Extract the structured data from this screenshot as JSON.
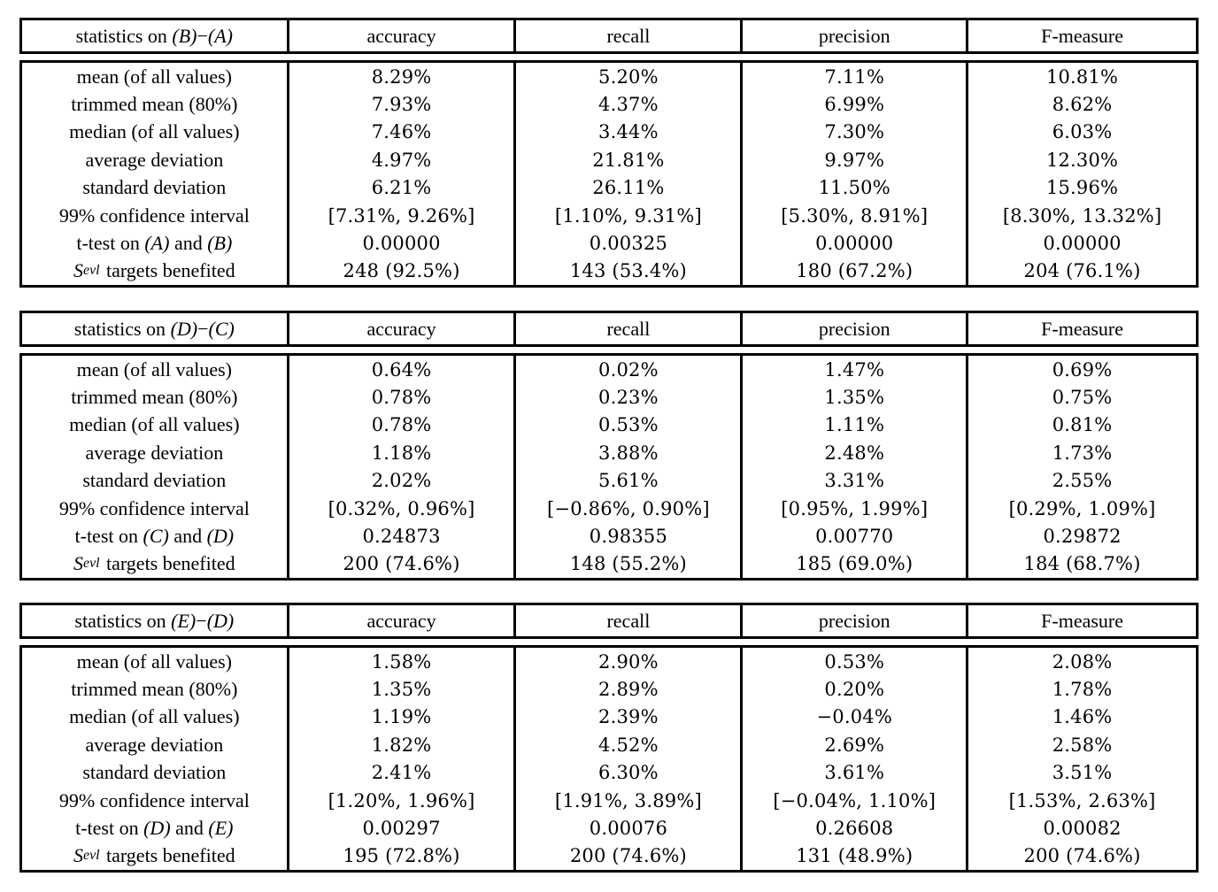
{
  "tables": [
    {
      "title_parts": [
        {
          "t": "statistics on ",
          "s": "r"
        },
        {
          "t": "(B)",
          "s": "i"
        },
        {
          "t": "−",
          "s": "r"
        },
        {
          "t": "(A)",
          "s": "i"
        }
      ],
      "columns": [
        "accuracy",
        "recall",
        "precision",
        "F-measure"
      ],
      "rows": [
        {
          "label_parts": [
            {
              "t": "mean (of all values)",
              "s": "r"
            }
          ],
          "values": [
            "8.29%",
            "5.20%",
            "7.11%",
            "10.81%"
          ]
        },
        {
          "label_parts": [
            {
              "t": "trimmed mean (80%)",
              "s": "r"
            }
          ],
          "values": [
            "7.93%",
            "4.37%",
            "6.99%",
            "8.62%"
          ]
        },
        {
          "label_parts": [
            {
              "t": "median (of all values)",
              "s": "r"
            }
          ],
          "values": [
            "7.46%",
            "3.44%",
            "7.30%",
            "6.03%"
          ]
        },
        {
          "label_parts": [
            {
              "t": "average deviation",
              "s": "r"
            }
          ],
          "values": [
            "4.97%",
            "21.81%",
            "9.97%",
            "12.30%"
          ]
        },
        {
          "label_parts": [
            {
              "t": "standard deviation",
              "s": "r"
            }
          ],
          "values": [
            "6.21%",
            "26.11%",
            "11.50%",
            "15.96%"
          ]
        },
        {
          "label_parts": [
            {
              "t": "99% confidence interval",
              "s": "r"
            }
          ],
          "values": [
            "[7.31%, 9.26%]",
            "[1.10%, 9.31%]",
            "[5.30%, 8.91%]",
            "[8.30%, 13.32%]"
          ]
        },
        {
          "label_parts": [
            {
              "t": "t-test on ",
              "s": "r"
            },
            {
              "t": "(A)",
              "s": "i"
            },
            {
              "t": " and ",
              "s": "r"
            },
            {
              "t": "(B)",
              "s": "i"
            }
          ],
          "values": [
            "0.00000",
            "0.00325",
            "0.00000",
            "0.00000"
          ]
        },
        {
          "label_parts": [
            {
              "t": "S",
              "s": "i"
            },
            {
              "t": "evl",
              "s": "sub"
            },
            {
              "t": " targets benefited",
              "s": "r"
            }
          ],
          "values": [
            "248 (92.5%)",
            "143 (53.4%)",
            "180 (67.2%)",
            "204 (76.1%)"
          ]
        }
      ]
    },
    {
      "title_parts": [
        {
          "t": "statistics on ",
          "s": "r"
        },
        {
          "t": "(D)",
          "s": "i"
        },
        {
          "t": "−",
          "s": "r"
        },
        {
          "t": "(C)",
          "s": "i"
        }
      ],
      "columns": [
        "accuracy",
        "recall",
        "precision",
        "F-measure"
      ],
      "rows": [
        {
          "label_parts": [
            {
              "t": "mean (of all values)",
              "s": "r"
            }
          ],
          "values": [
            "0.64%",
            "0.02%",
            "1.47%",
            "0.69%"
          ]
        },
        {
          "label_parts": [
            {
              "t": "trimmed mean (80%)",
              "s": "r"
            }
          ],
          "values": [
            "0.78%",
            "0.23%",
            "1.35%",
            "0.75%"
          ]
        },
        {
          "label_parts": [
            {
              "t": "median (of all values)",
              "s": "r"
            }
          ],
          "values": [
            "0.78%",
            "0.53%",
            "1.11%",
            "0.81%"
          ]
        },
        {
          "label_parts": [
            {
              "t": "average deviation",
              "s": "r"
            }
          ],
          "values": [
            "1.18%",
            "3.88%",
            "2.48%",
            "1.73%"
          ]
        },
        {
          "label_parts": [
            {
              "t": "standard deviation",
              "s": "r"
            }
          ],
          "values": [
            "2.02%",
            "5.61%",
            "3.31%",
            "2.55%"
          ]
        },
        {
          "label_parts": [
            {
              "t": "99% confidence interval",
              "s": "r"
            }
          ],
          "values": [
            "[0.32%, 0.96%]",
            "[−0.86%, 0.90%]",
            "[0.95%, 1.99%]",
            "[0.29%, 1.09%]"
          ]
        },
        {
          "label_parts": [
            {
              "t": "t-test on ",
              "s": "r"
            },
            {
              "t": "(C)",
              "s": "i"
            },
            {
              "t": " and ",
              "s": "r"
            },
            {
              "t": "(D)",
              "s": "i"
            }
          ],
          "values": [
            "0.24873",
            "0.98355",
            "0.00770",
            "0.29872"
          ]
        },
        {
          "label_parts": [
            {
              "t": "S",
              "s": "i"
            },
            {
              "t": "evl",
              "s": "sub"
            },
            {
              "t": " targets benefited",
              "s": "r"
            }
          ],
          "values": [
            "200 (74.6%)",
            "148 (55.2%)",
            "185 (69.0%)",
            "184 (68.7%)"
          ]
        }
      ]
    },
    {
      "title_parts": [
        {
          "t": "statistics on ",
          "s": "r"
        },
        {
          "t": "(E)",
          "s": "i"
        },
        {
          "t": "−",
          "s": "r"
        },
        {
          "t": "(D)",
          "s": "i"
        }
      ],
      "columns": [
        "accuracy",
        "recall",
        "precision",
        "F-measure"
      ],
      "rows": [
        {
          "label_parts": [
            {
              "t": "mean (of all values)",
              "s": "r"
            }
          ],
          "values": [
            "1.58%",
            "2.90%",
            "0.53%",
            "2.08%"
          ]
        },
        {
          "label_parts": [
            {
              "t": "trimmed mean (80%)",
              "s": "r"
            }
          ],
          "values": [
            "1.35%",
            "2.89%",
            "0.20%",
            "1.78%"
          ]
        },
        {
          "label_parts": [
            {
              "t": "median (of all values)",
              "s": "r"
            }
          ],
          "values": [
            "1.19%",
            "2.39%",
            "−0.04%",
            "1.46%"
          ]
        },
        {
          "label_parts": [
            {
              "t": "average deviation",
              "s": "r"
            }
          ],
          "values": [
            "1.82%",
            "4.52%",
            "2.69%",
            "2.58%"
          ]
        },
        {
          "label_parts": [
            {
              "t": "standard deviation",
              "s": "r"
            }
          ],
          "values": [
            "2.41%",
            "6.30%",
            "3.61%",
            "3.51%"
          ]
        },
        {
          "label_parts": [
            {
              "t": "99% confidence interval",
              "s": "r"
            }
          ],
          "values": [
            "[1.20%, 1.96%]",
            "[1.91%, 3.89%]",
            "[−0.04%, 1.10%]",
            "[1.53%, 2.63%]"
          ]
        },
        {
          "label_parts": [
            {
              "t": "t-test on ",
              "s": "r"
            },
            {
              "t": "(D)",
              "s": "i"
            },
            {
              "t": " and ",
              "s": "r"
            },
            {
              "t": "(E)",
              "s": "i"
            }
          ],
          "values": [
            "0.00297",
            "0.00076",
            "0.26608",
            "0.00082"
          ]
        },
        {
          "label_parts": [
            {
              "t": "S",
              "s": "i"
            },
            {
              "t": "evl",
              "s": "sub"
            },
            {
              "t": " targets benefited",
              "s": "r"
            }
          ],
          "values": [
            "195 (72.8%)",
            "200 (74.6%)",
            "131 (48.9%)",
            "200 (74.6%)"
          ]
        }
      ]
    }
  ],
  "chart_data": [
    {
      "type": "table",
      "title": "statistics on (B)−(A)",
      "columns": [
        "accuracy",
        "recall",
        "precision",
        "F-measure"
      ],
      "row_labels": [
        "mean (of all values)",
        "trimmed mean (80%)",
        "median (of all values)",
        "average deviation",
        "standard deviation",
        "99% confidence interval",
        "t-test on (A) and (B)",
        "S_evl targets benefited"
      ],
      "cells": [
        [
          "8.29%",
          "5.20%",
          "7.11%",
          "10.81%"
        ],
        [
          "7.93%",
          "4.37%",
          "6.99%",
          "8.62%"
        ],
        [
          "7.46%",
          "3.44%",
          "7.30%",
          "6.03%"
        ],
        [
          "4.97%",
          "21.81%",
          "9.97%",
          "12.30%"
        ],
        [
          "6.21%",
          "26.11%",
          "11.50%",
          "15.96%"
        ],
        [
          "[7.31%, 9.26%]",
          "[1.10%, 9.31%]",
          "[5.30%, 8.91%]",
          "[8.30%, 13.32%]"
        ],
        [
          "0.00000",
          "0.00325",
          "0.00000",
          "0.00000"
        ],
        [
          "248 (92.5%)",
          "143 (53.4%)",
          "180 (67.2%)",
          "204 (76.1%)"
        ]
      ]
    },
    {
      "type": "table",
      "title": "statistics on (D)−(C)",
      "columns": [
        "accuracy",
        "recall",
        "precision",
        "F-measure"
      ],
      "row_labels": [
        "mean (of all values)",
        "trimmed mean (80%)",
        "median (of all values)",
        "average deviation",
        "standard deviation",
        "99% confidence interval",
        "t-test on (C) and (D)",
        "S_evl targets benefited"
      ],
      "cells": [
        [
          "0.64%",
          "0.02%",
          "1.47%",
          "0.69%"
        ],
        [
          "0.78%",
          "0.23%",
          "1.35%",
          "0.75%"
        ],
        [
          "0.78%",
          "0.53%",
          "1.11%",
          "0.81%"
        ],
        [
          "1.18%",
          "3.88%",
          "2.48%",
          "1.73%"
        ],
        [
          "2.02%",
          "5.61%",
          "3.31%",
          "2.55%"
        ],
        [
          "[0.32%, 0.96%]",
          "[−0.86%, 0.90%]",
          "[0.95%, 1.99%]",
          "[0.29%, 1.09%]"
        ],
        [
          "0.24873",
          "0.98355",
          "0.00770",
          "0.29872"
        ],
        [
          "200 (74.6%)",
          "148 (55.2%)",
          "185 (69.0%)",
          "184 (68.7%)"
        ]
      ]
    },
    {
      "type": "table",
      "title": "statistics on (E)−(D)",
      "columns": [
        "accuracy",
        "recall",
        "precision",
        "F-measure"
      ],
      "row_labels": [
        "mean (of all values)",
        "trimmed mean (80%)",
        "median (of all values)",
        "average deviation",
        "standard deviation",
        "99% confidence interval",
        "t-test on (D) and (E)",
        "S_evl targets benefited"
      ],
      "cells": [
        [
          "1.58%",
          "2.90%",
          "0.53%",
          "2.08%"
        ],
        [
          "1.35%",
          "2.89%",
          "0.20%",
          "1.78%"
        ],
        [
          "1.19%",
          "2.39%",
          "−0.04%",
          "1.46%"
        ],
        [
          "1.82%",
          "4.52%",
          "2.69%",
          "2.58%"
        ],
        [
          "2.41%",
          "6.30%",
          "3.61%",
          "3.51%"
        ],
        [
          "[1.20%, 1.96%]",
          "[1.91%, 3.89%]",
          "[−0.04%, 1.10%]",
          "[1.53%, 2.63%]"
        ],
        [
          "0.00297",
          "0.00076",
          "0.26608",
          "0.00082"
        ],
        [
          "195 (72.8%)",
          "200 (74.6%)",
          "131 (48.9%)",
          "200 (74.6%)"
        ]
      ]
    }
  ]
}
